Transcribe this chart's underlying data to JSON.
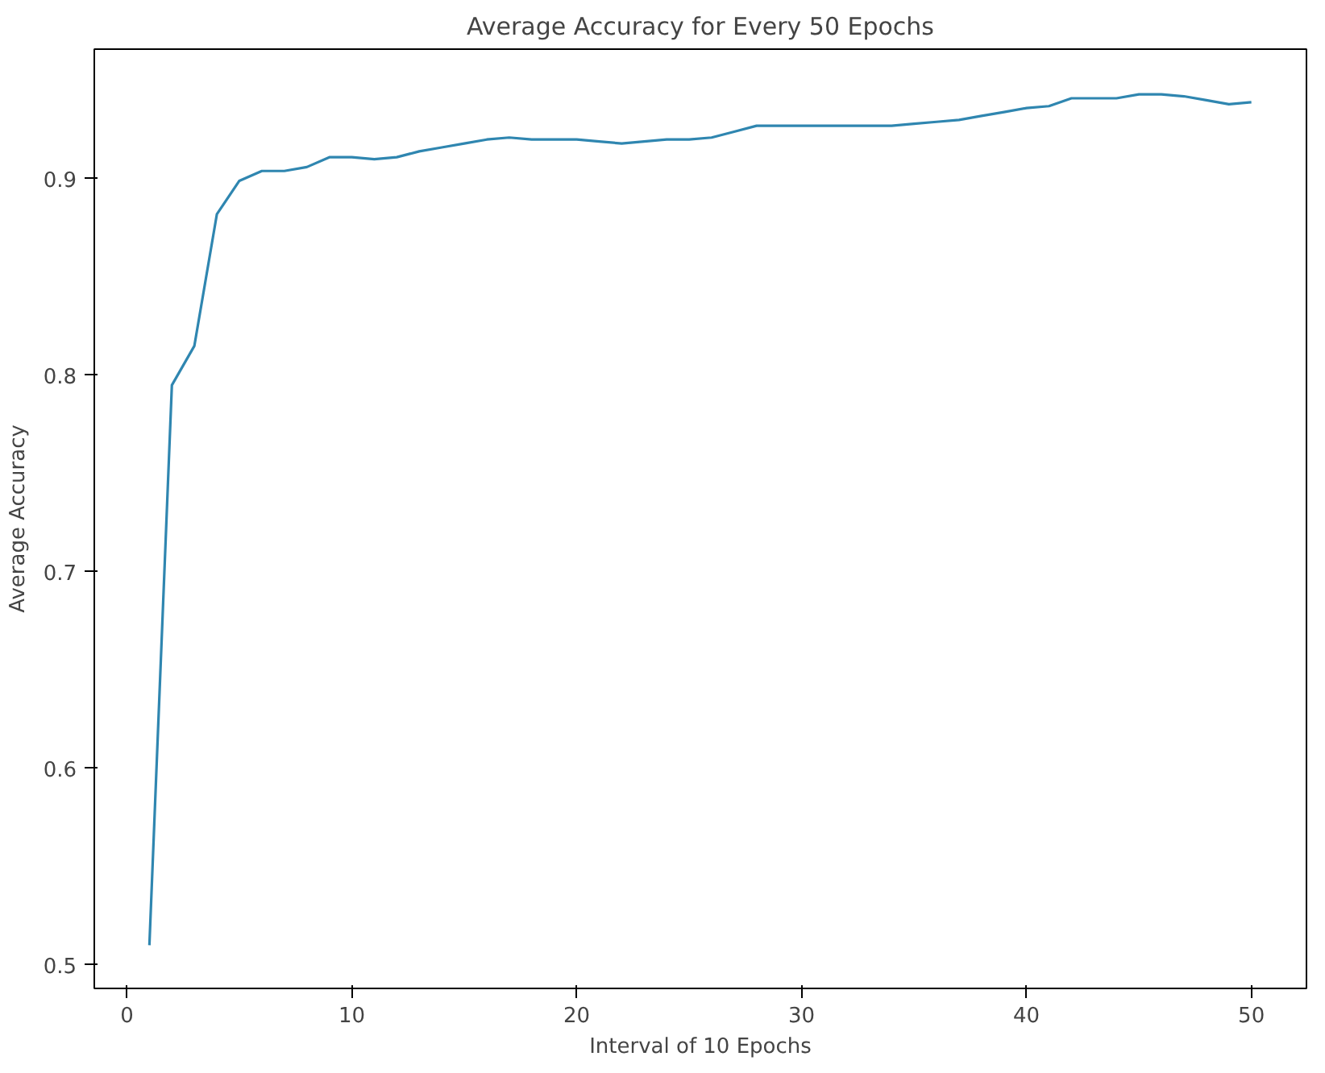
{
  "chart_data": {
    "type": "line",
    "title": "Average Accuracy for Every 50 Epochs",
    "xlabel": "Interval of 10 Epochs",
    "ylabel": "Average Accuracy",
    "x": [
      1,
      2,
      3,
      4,
      5,
      6,
      7,
      8,
      9,
      10,
      11,
      12,
      13,
      14,
      15,
      16,
      17,
      18,
      19,
      20,
      21,
      22,
      23,
      24,
      25,
      26,
      27,
      28,
      29,
      30,
      31,
      32,
      33,
      34,
      35,
      36,
      37,
      38,
      39,
      40,
      41,
      42,
      43,
      44,
      45,
      46,
      47,
      48,
      49,
      50
    ],
    "series": [
      {
        "color": "#2f86b0",
        "values": [
          0.51,
          0.795,
          0.815,
          0.882,
          0.899,
          0.904,
          0.904,
          0.906,
          0.911,
          0.911,
          0.91,
          0.911,
          0.914,
          0.916,
          0.918,
          0.92,
          0.921,
          0.92,
          0.92,
          0.92,
          0.919,
          0.918,
          0.919,
          0.92,
          0.92,
          0.921,
          0.924,
          0.927,
          0.927,
          0.927,
          0.927,
          0.927,
          0.927,
          0.927,
          0.928,
          0.929,
          0.93,
          0.932,
          0.934,
          0.936,
          0.937,
          0.941,
          0.941,
          0.941,
          0.943,
          0.943,
          0.942,
          0.94,
          0.938,
          0.939
        ]
      }
    ],
    "xlim": [
      -1.45,
      52.45
    ],
    "ylim": [
      0.488,
      0.966
    ],
    "xticks": [
      0,
      10,
      20,
      30,
      40,
      50
    ],
    "yticks": [
      0.5,
      0.6,
      0.7,
      0.8,
      0.9
    ],
    "grid": false,
    "marker": "none",
    "line_style": "solid"
  }
}
